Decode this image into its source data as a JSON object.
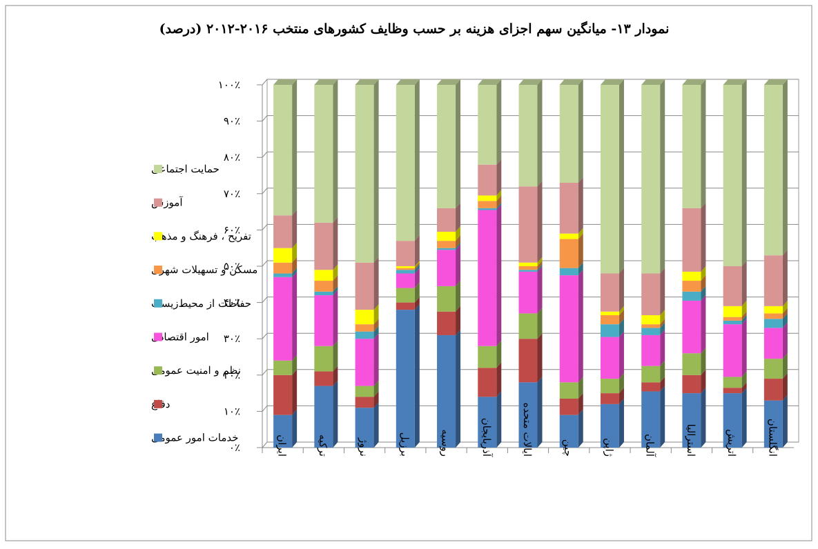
{
  "chart_data": {
    "type": "stacked-bar-3d",
    "title": "نمودار ۱۳- میانگین سهم اجزای هزینه بر حسب وظایف کشورهای منتخب ۲۰۱۶-۲۰۱۲ (درصد)",
    "categories": [
      "ایران",
      "ترکیه",
      "نروژ",
      "برزیل",
      "روسیه",
      "آذربایجان",
      "ایالات متحده",
      "چین",
      "ژاپن",
      "آلمان",
      "استرالیا",
      "اتریش",
      "انگلستان"
    ],
    "series": [
      {
        "name": "خدمات امور عمومی",
        "color": "#4a7ebb",
        "values": [
          9,
          17,
          11,
          38,
          31,
          14,
          18,
          9,
          12,
          15.5,
          15,
          15,
          13
        ]
      },
      {
        "name": "دفاع",
        "color": "#be4b48",
        "values": [
          11,
          4,
          3,
          2,
          6.5,
          8,
          12,
          4.5,
          3,
          2.5,
          5,
          1.5,
          6
        ]
      },
      {
        "name": "نظم و امنیت عمومی",
        "color": "#98b954",
        "values": [
          4,
          7,
          3,
          4,
          7,
          6,
          7,
          4.5,
          4,
          4.5,
          6,
          3,
          5.5
        ]
      },
      {
        "name": "امور اقتصادی",
        "color": "#f652dc",
        "values": [
          23,
          14,
          13,
          4,
          10,
          37.5,
          11.5,
          29.5,
          11.5,
          8.5,
          14.5,
          14.5,
          8.5
        ]
      },
      {
        "name": "حفاظت از محیط‌زیست",
        "color": "#4bacc6",
        "values": [
          1,
          1,
          2,
          1,
          0.5,
          0.5,
          0.5,
          2,
          3.5,
          2,
          2.5,
          1,
          2.5
        ]
      },
      {
        "name": "مسکن و تسهیلات شهری",
        "color": "#f79646",
        "values": [
          3,
          3,
          2,
          0.5,
          2,
          2,
          1,
          8,
          2.5,
          1,
          3,
          1,
          1.5
        ]
      },
      {
        "name": "تفریح ، فرهنگ و مذهب",
        "color": "#ffff00",
        "values": [
          4,
          3,
          4,
          0.5,
          2.5,
          1.5,
          1,
          1.5,
          1,
          2.5,
          2.5,
          3,
          2
        ]
      },
      {
        "name": "آموزش",
        "color": "#d99594",
        "values": [
          9,
          13,
          13,
          7,
          6.5,
          8.5,
          21,
          14,
          10.5,
          11.5,
          17.5,
          11,
          14
        ]
      },
      {
        "name": "حمایت اجتماعی",
        "color": "#c3d69b",
        "values": [
          36,
          38,
          49,
          43,
          34,
          22,
          28,
          27,
          52,
          52,
          34,
          50,
          47
        ]
      }
    ],
    "ylim": [
      0,
      100
    ],
    "yticks": [
      {
        "value": 0,
        "label": "۰٪"
      },
      {
        "value": 10,
        "label": "۱۰٪"
      },
      {
        "value": 20,
        "label": "۲۰٪"
      },
      {
        "value": 30,
        "label": "۳۰٪"
      },
      {
        "value": 40,
        "label": "۴۰٪"
      },
      {
        "value": 50,
        "label": "۵۰٪"
      },
      {
        "value": 60,
        "label": "۶۰٪"
      },
      {
        "value": 70,
        "label": "۷۰٪"
      },
      {
        "value": 80,
        "label": "۸۰٪"
      },
      {
        "value": 90,
        "label": "۹۰٪"
      },
      {
        "value": 100,
        "label": "۱۰۰٪"
      }
    ],
    "grid": true
  }
}
